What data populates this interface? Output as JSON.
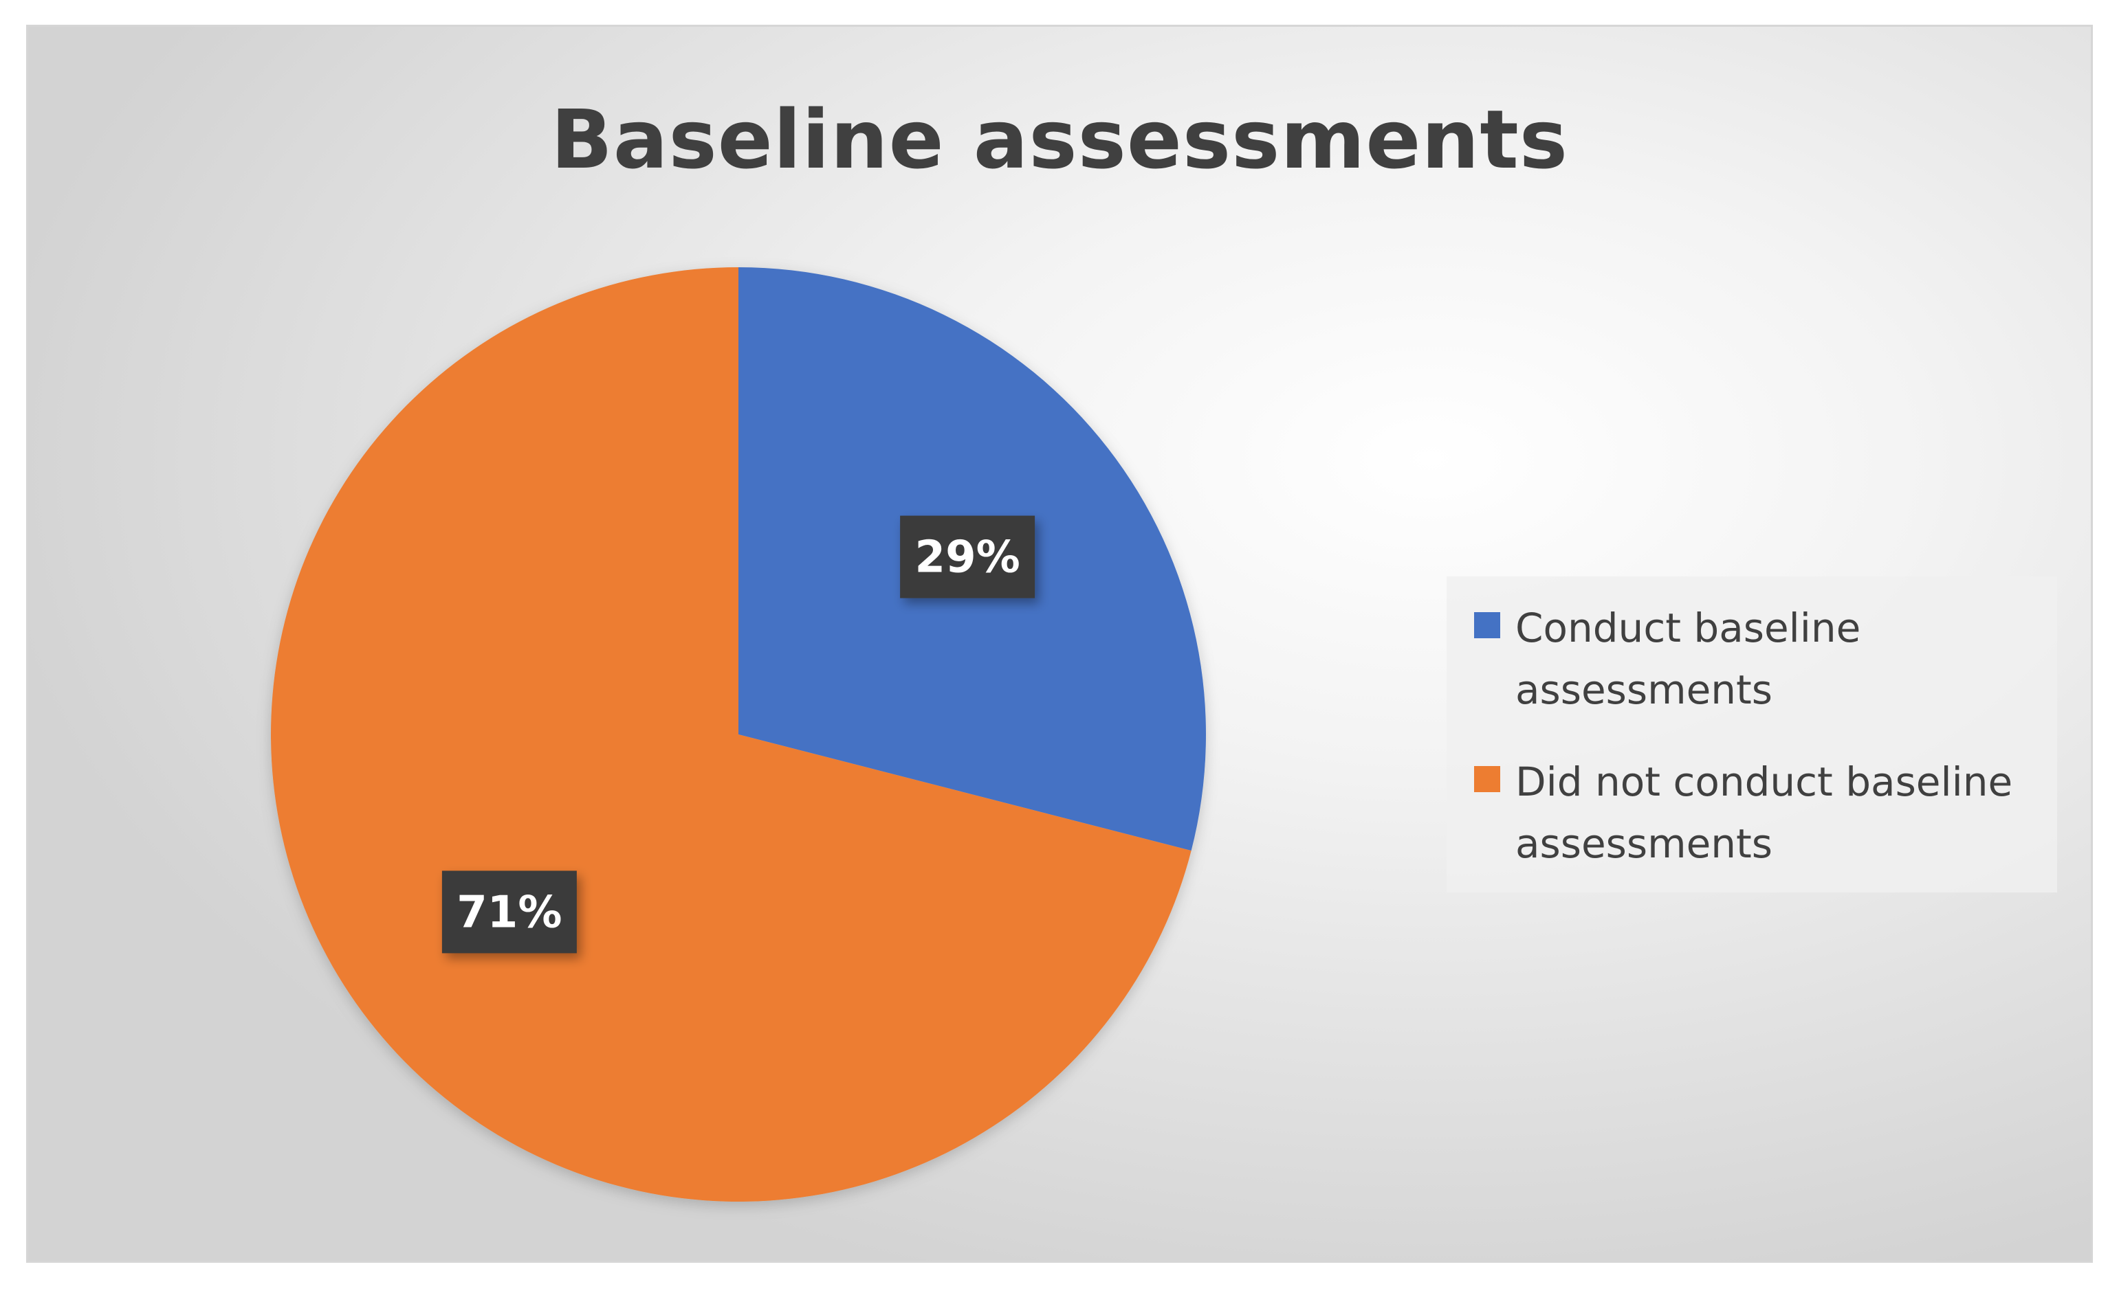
{
  "chart_data": {
    "type": "pie",
    "title": "Baseline assessments",
    "categories": [
      "Conduct baseline assessments",
      "Did not conduct baseline assessments"
    ],
    "values": [
      29,
      71
    ],
    "data_labels": [
      "29%",
      "71%"
    ],
    "colors": [
      "#4472C4",
      "#ED7D31"
    ],
    "legend_position": "right",
    "start_angle_deg": 0,
    "direction": "clockwise"
  },
  "label_colors": {
    "label_background": "#3a3a3a",
    "label_text": "#ffffff"
  }
}
